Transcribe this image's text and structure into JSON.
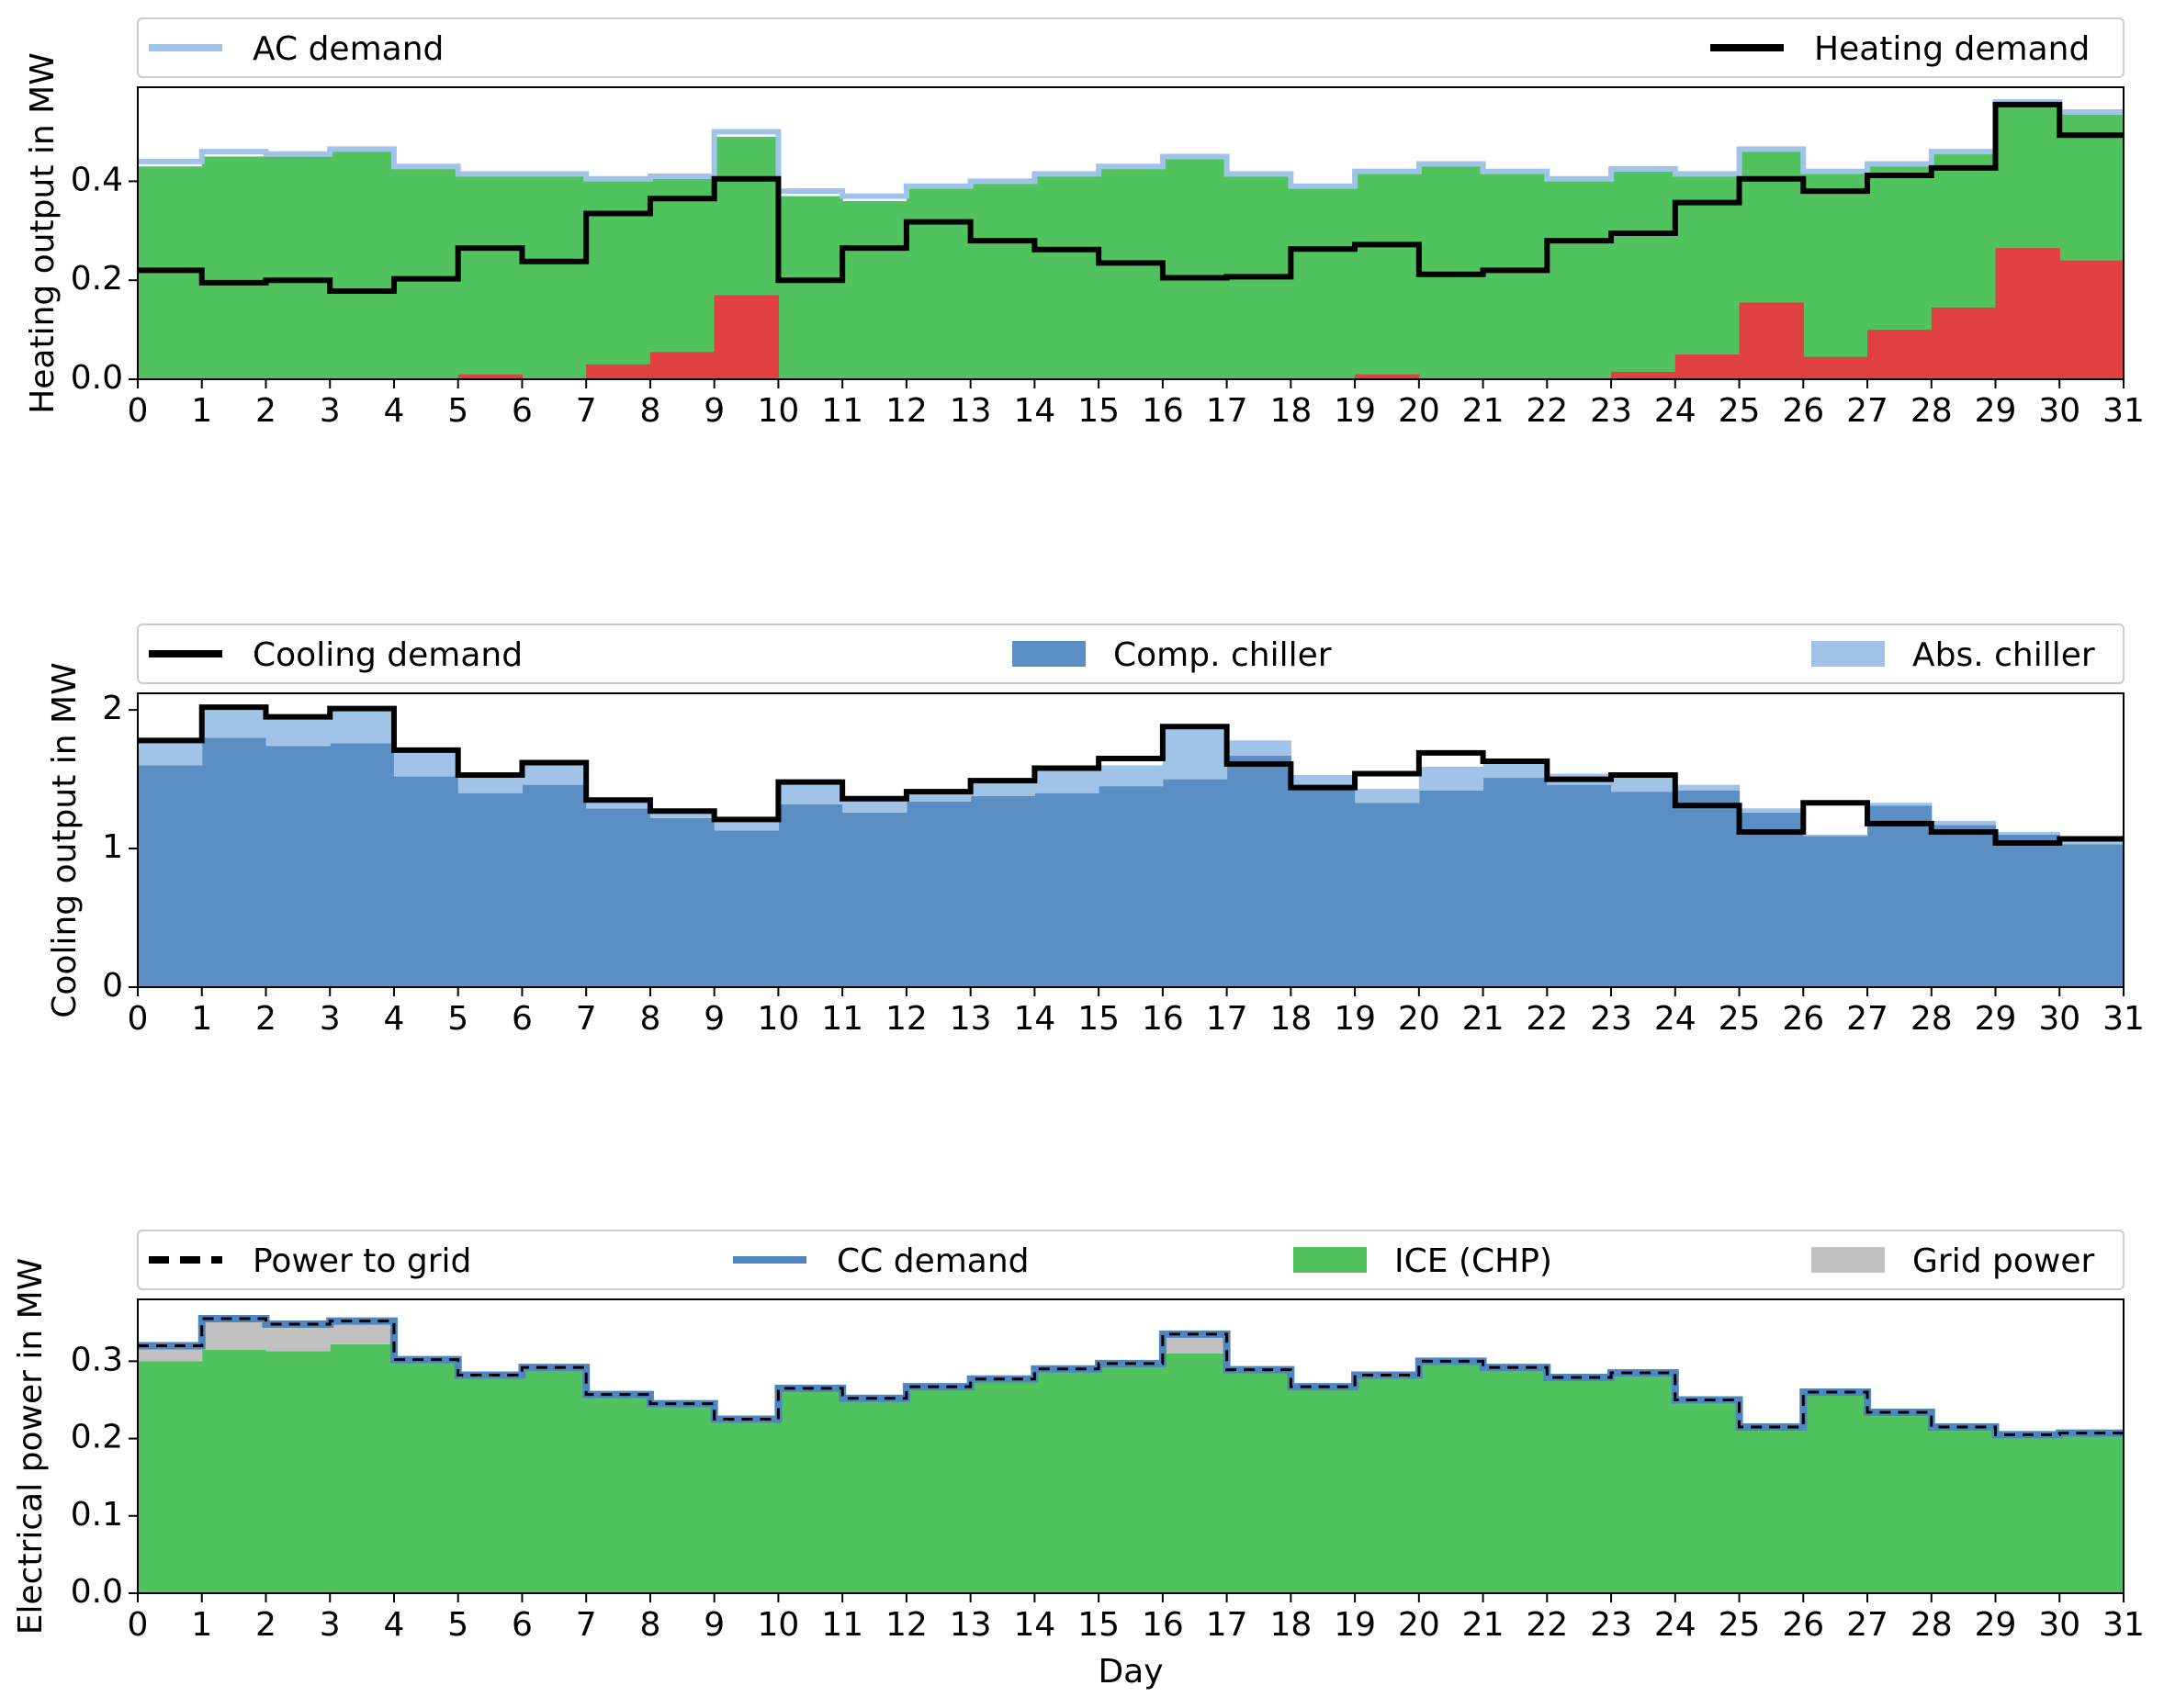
{
  "figure": {
    "xlabel": "Day"
  },
  "colors": {
    "ice_green": "#50c35e",
    "boiler_red": "#e04040",
    "ac_light_blue": "#a0c4e8",
    "comp_blue": "#5b8fc4",
    "grid_gray": "#c0c0c0",
    "cc_blue": "#4f86c0",
    "black": "#000000"
  },
  "chart_data": [
    {
      "type": "area",
      "ylabel": "Heating output in MW",
      "ylim": [
        0,
        0.59
      ],
      "yticks": [
        "0.0",
        "0.2",
        "0.4"
      ],
      "xlim": [
        0,
        31
      ],
      "xticks": [
        "0",
        "1",
        "2",
        "3",
        "4",
        "5",
        "6",
        "7",
        "8",
        "9",
        "10",
        "11",
        "12",
        "13",
        "14",
        "15",
        "16",
        "17",
        "18",
        "19",
        "20",
        "21",
        "22",
        "23",
        "24",
        "25",
        "26",
        "27",
        "28",
        "29",
        "30",
        "31"
      ],
      "legend": [
        "AC demand",
        "Heating demand"
      ],
      "series": [
        {
          "name": "AC demand",
          "style": "step-line",
          "values": [
            0.44,
            0.46,
            0.455,
            0.465,
            0.43,
            0.415,
            0.415,
            0.405,
            0.41,
            0.5,
            0.38,
            0.37,
            0.39,
            0.4,
            0.415,
            0.43,
            0.45,
            0.415,
            0.39,
            0.42,
            0.435,
            0.42,
            0.405,
            0.425,
            0.415,
            0.465,
            0.42,
            0.435,
            0.46,
            0.56,
            0.54
          ]
        },
        {
          "style": "step-fill-green",
          "values": [
            0.43,
            0.45,
            0.45,
            0.46,
            0.425,
            0.41,
            0.41,
            0.4,
            0.405,
            0.49,
            0.37,
            0.36,
            0.385,
            0.395,
            0.41,
            0.425,
            0.445,
            0.41,
            0.385,
            0.415,
            0.43,
            0.415,
            0.4,
            0.42,
            0.41,
            0.46,
            0.415,
            0.43,
            0.455,
            0.555,
            0.535
          ]
        },
        {
          "style": "step-fill-red",
          "values": [
            0,
            0,
            0,
            0,
            0,
            0.01,
            0,
            0.03,
            0.055,
            0.17,
            0,
            0,
            0,
            0,
            0,
            0,
            0,
            0,
            0,
            0.01,
            0,
            0,
            0,
            0.015,
            0.05,
            0.155,
            0.045,
            0.1,
            0.145,
            0.265,
            0.24
          ]
        },
        {
          "name": "Heating demand",
          "style": "step-line",
          "values": [
            0.22,
            0.195,
            0.2,
            0.178,
            0.203,
            0.265,
            0.238,
            0.335,
            0.365,
            0.405,
            0.2,
            0.265,
            0.318,
            0.28,
            0.262,
            0.235,
            0.205,
            0.207,
            0.263,
            0.272,
            0.212,
            0.22,
            0.28,
            0.295,
            0.357,
            0.405,
            0.38,
            0.412,
            0.427,
            0.555,
            0.493
          ]
        }
      ]
    },
    {
      "type": "area",
      "ylabel": "Cooling output in MW",
      "ylim": [
        0,
        2.12
      ],
      "yticks": [
        "0",
        "1",
        "2"
      ],
      "xlim": [
        0,
        31
      ],
      "xticks": [
        "0",
        "1",
        "2",
        "3",
        "4",
        "5",
        "6",
        "7",
        "8",
        "9",
        "10",
        "11",
        "12",
        "13",
        "14",
        "15",
        "16",
        "17",
        "18",
        "19",
        "20",
        "21",
        "22",
        "23",
        "24",
        "25",
        "26",
        "27",
        "28",
        "29",
        "30",
        "31"
      ],
      "legend": [
        "Cooling demand",
        "Comp. chiller",
        "Abs. chiller"
      ],
      "series": [
        {
          "name": "Comp. chiller",
          "style": "step-fill",
          "values": [
            1.6,
            1.8,
            1.74,
            1.76,
            1.52,
            1.4,
            1.46,
            1.29,
            1.22,
            1.13,
            1.32,
            1.26,
            1.34,
            1.38,
            1.4,
            1.45,
            1.5,
            1.67,
            1.44,
            1.33,
            1.42,
            1.51,
            1.46,
            1.41,
            1.42,
            1.26,
            1.09,
            1.31,
            1.17,
            1.1,
            1.03
          ]
        },
        {
          "name": "Abs. chiller",
          "style": "step-fill-stacked",
          "values": [
            0.18,
            0.22,
            0.21,
            0.25,
            0.19,
            0.13,
            0.16,
            0.06,
            0.05,
            0.08,
            0.16,
            0.1,
            0.07,
            0.11,
            0.18,
            0.15,
            0.38,
            0.11,
            0.09,
            0.1,
            0.17,
            0.12,
            0.08,
            0.12,
            0.04,
            0.03,
            0.01,
            0.02,
            0.03,
            0.02,
            0.04
          ]
        },
        {
          "name": "Cooling demand",
          "style": "step-line",
          "values": [
            1.78,
            2.02,
            1.95,
            2.01,
            1.71,
            1.53,
            1.62,
            1.35,
            1.27,
            1.21,
            1.48,
            1.36,
            1.41,
            1.49,
            1.58,
            1.65,
            1.88,
            1.61,
            1.44,
            1.54,
            1.69,
            1.63,
            1.5,
            1.53,
            1.31,
            1.12,
            1.33,
            1.18,
            1.12,
            1.04,
            1.07
          ]
        }
      ]
    },
    {
      "type": "area",
      "ylabel": "Electrical power in MW",
      "ylim": [
        0,
        0.38
      ],
      "yticks": [
        "0.0",
        "0.1",
        "0.2",
        "0.3"
      ],
      "xlim": [
        0,
        31
      ],
      "xticks": [
        "0",
        "1",
        "2",
        "3",
        "4",
        "5",
        "6",
        "7",
        "8",
        "9",
        "10",
        "11",
        "12",
        "13",
        "14",
        "15",
        "16",
        "17",
        "18",
        "19",
        "20",
        "21",
        "22",
        "23",
        "24",
        "25",
        "26",
        "27",
        "28",
        "29",
        "30",
        "31"
      ],
      "legend": [
        "Power to grid",
        "CC demand",
        "ICE (CHP)",
        "Grid power"
      ],
      "series": [
        {
          "name": "ICE (CHP)",
          "style": "step-fill",
          "values": [
            0.3,
            0.315,
            0.313,
            0.322,
            0.3,
            0.28,
            0.29,
            0.255,
            0.243,
            0.223,
            0.263,
            0.25,
            0.265,
            0.275,
            0.288,
            0.295,
            0.31,
            0.287,
            0.265,
            0.28,
            0.298,
            0.29,
            0.277,
            0.283,
            0.248,
            0.213,
            0.258,
            0.232,
            0.213,
            0.203,
            0.205
          ]
        },
        {
          "name": "Grid power",
          "style": "step-fill-stacked",
          "values": [
            0.02,
            0.04,
            0.035,
            0.03,
            0.002,
            0.002,
            0.002,
            0.002,
            0.002,
            0.002,
            0.002,
            0.002,
            0.002,
            0.002,
            0.002,
            0.002,
            0.025,
            0.002,
            0.002,
            0.002,
            0.002,
            0.002,
            0.002,
            0.002,
            0.002,
            0.002,
            0.002,
            0.002,
            0.002,
            0.002,
            0.002
          ]
        },
        {
          "name": "CC demand",
          "style": "step-line",
          "values": [
            0.32,
            0.355,
            0.348,
            0.352,
            0.302,
            0.282,
            0.292,
            0.257,
            0.245,
            0.225,
            0.265,
            0.252,
            0.267,
            0.277,
            0.29,
            0.297,
            0.335,
            0.289,
            0.267,
            0.282,
            0.3,
            0.292,
            0.279,
            0.285,
            0.25,
            0.215,
            0.26,
            0.234,
            0.215,
            0.205,
            0.207
          ]
        },
        {
          "name": "Power to grid",
          "style": "step-line-dashed",
          "values": [
            0.32,
            0.355,
            0.348,
            0.352,
            0.302,
            0.282,
            0.292,
            0.257,
            0.245,
            0.225,
            0.265,
            0.252,
            0.267,
            0.277,
            0.29,
            0.297,
            0.335,
            0.289,
            0.267,
            0.282,
            0.3,
            0.292,
            0.279,
            0.285,
            0.25,
            0.215,
            0.26,
            0.234,
            0.215,
            0.205,
            0.207
          ]
        }
      ]
    }
  ]
}
